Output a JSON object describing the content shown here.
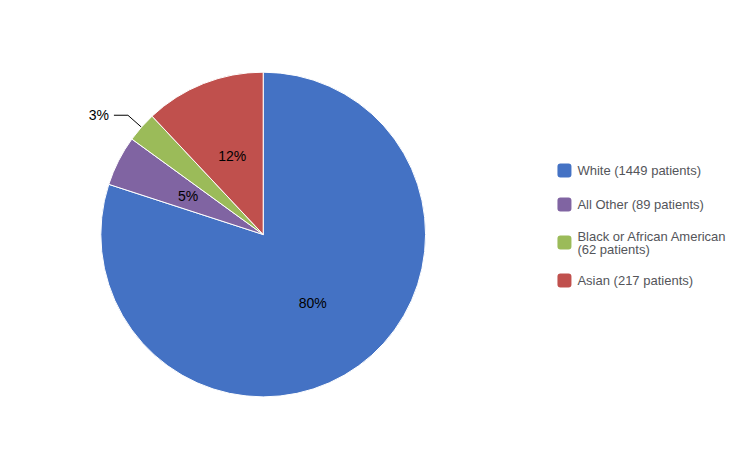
{
  "chart_data": {
    "type": "pie",
    "categories": [
      "White (1449 patients)",
      "All Other (89 patients)",
      "Black or African American\n(62 patients)",
      "Asian (217 patients)"
    ],
    "values": [
      80,
      5,
      3,
      12
    ],
    "value_labels": [
      "80%",
      "5%",
      "3%",
      "12%"
    ],
    "colors": [
      "#4472C4",
      "#8064A2",
      "#9BBB59",
      "#C0504D"
    ],
    "data_labels": true,
    "legend": "right"
  }
}
